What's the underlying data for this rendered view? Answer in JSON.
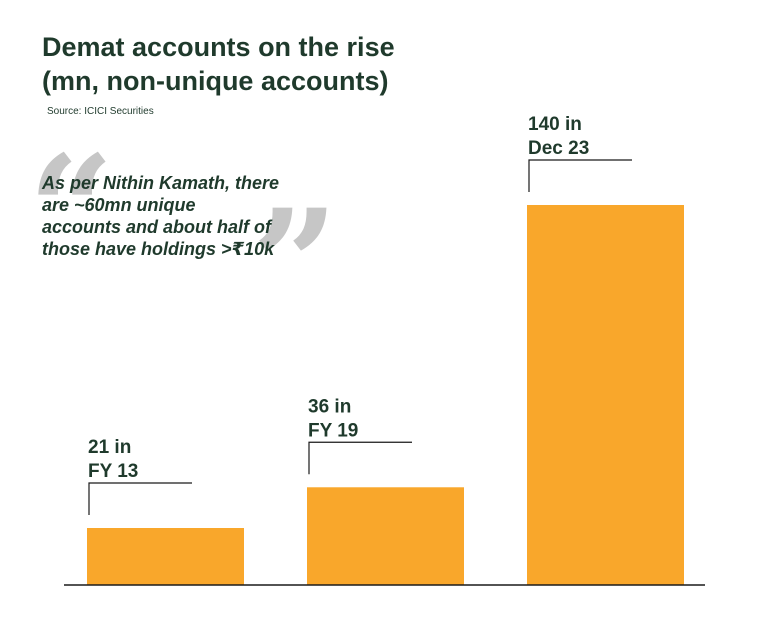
{
  "title_line1": "Demat accounts on the rise",
  "title_line2": "(mn, non-unique accounts)",
  "source": "Source: ICICI Securities",
  "quote": {
    "open_mark": "“",
    "close_mark": "”",
    "lines": [
      "As per Nithin Kamath, there",
      "are ~60mn unique",
      "accounts and about half of",
      "those have holdings >₹10k"
    ]
  },
  "colors": {
    "bar": "#f9a72b",
    "text": "#1f3a2c",
    "quote_marks": "#c6c6c6",
    "axis": "#1a1a1a"
  },
  "chart_data": {
    "type": "bar",
    "title": "Demat accounts on the rise (mn, non-unique accounts)",
    "categories": [
      "FY 13",
      "FY 19",
      "Dec 23"
    ],
    "values": [
      21,
      36,
      140
    ],
    "ylim": [
      0,
      140
    ],
    "grid": false,
    "labels": [
      {
        "line1": "21 in",
        "line2": "FY 13"
      },
      {
        "line1": "36 in",
        "line2": "FY 19"
      },
      {
        "line1": "140 in",
        "line2": "Dec 23"
      }
    ]
  }
}
